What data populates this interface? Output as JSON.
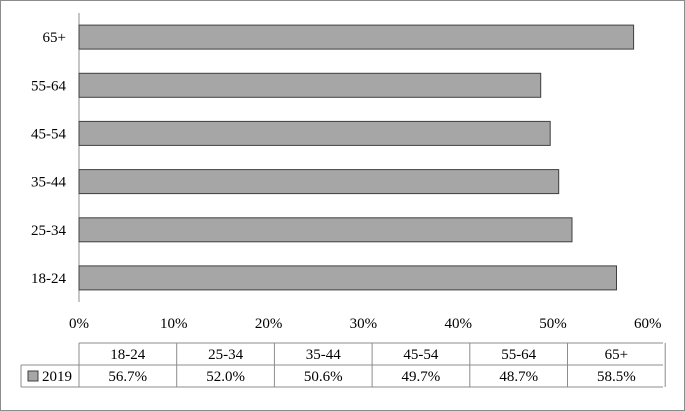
{
  "chart_data": {
    "type": "bar",
    "orientation": "horizontal",
    "categories": [
      "18-24",
      "25-34",
      "35-44",
      "45-54",
      "55-64",
      "65+"
    ],
    "series": [
      {
        "name": "2019",
        "values": [
          56.7,
          52.0,
          50.6,
          49.7,
          48.7,
          58.5
        ],
        "color": "#a6a6a6"
      }
    ],
    "xlim": [
      0,
      60
    ],
    "x_ticks": [
      "0%",
      "10%",
      "20%",
      "30%",
      "40%",
      "50%",
      "60%"
    ],
    "value_labels": [
      "56.7%",
      "52.0%",
      "50.6%",
      "49.7%",
      "48.7%",
      "58.5%"
    ],
    "grid": false,
    "data_table": true
  }
}
